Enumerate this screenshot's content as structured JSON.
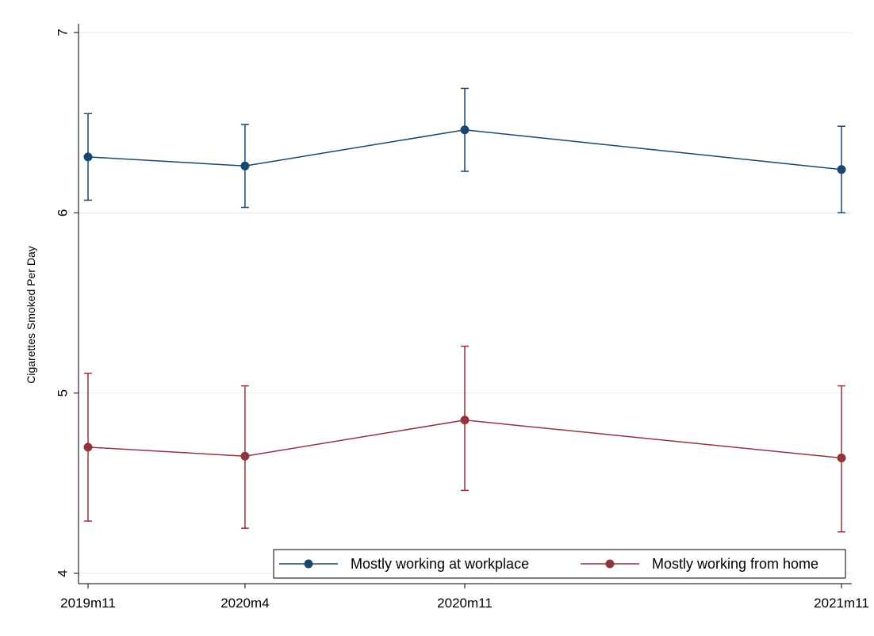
{
  "chart_data": {
    "type": "line",
    "x": [
      "2019m11",
      "2020m4",
      "2020m11",
      "2021m11"
    ],
    "x_values": [
      0,
      5,
      12,
      24
    ],
    "xlabel": "",
    "ylabel": "Cigarettes Smoked Per Day",
    "ylim": [
      3.93,
      7.1
    ],
    "yticks": [
      4,
      5,
      6,
      7
    ],
    "grid": true,
    "legend_position": "bottom-right",
    "series": [
      {
        "name": "Mostly working at workplace",
        "color": "#1a476f",
        "values": [
          6.31,
          6.26,
          6.46,
          6.24
        ],
        "ci_low": [
          6.07,
          6.03,
          6.23,
          6.0
        ],
        "ci_high": [
          6.55,
          6.49,
          6.69,
          6.48
        ]
      },
      {
        "name": "Mostly working from home",
        "color": "#90353b",
        "values": [
          4.7,
          4.65,
          4.85,
          4.64
        ],
        "ci_low": [
          4.29,
          4.25,
          4.46,
          4.23
        ],
        "ci_high": [
          5.11,
          5.04,
          5.26,
          5.04
        ]
      }
    ]
  }
}
